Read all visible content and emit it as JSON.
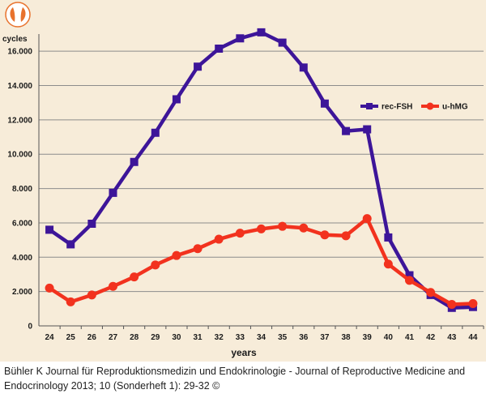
{
  "chart_data": {
    "type": "line",
    "title": "",
    "ylabel": "cycles",
    "xlabel": "years",
    "categories": [
      "24",
      "25",
      "26",
      "27",
      "28",
      "29",
      "30",
      "31",
      "32",
      "33",
      "34",
      "35",
      "36",
      "37",
      "38",
      "39",
      "40",
      "41",
      "42",
      "43",
      "44"
    ],
    "series": [
      {
        "name": "rec-FSH",
        "color": "#3d1599",
        "values": [
          5600,
          4750,
          5950,
          7750,
          9550,
          11250,
          13200,
          15100,
          16150,
          16750,
          17100,
          16500,
          15050,
          12950,
          11350,
          11450,
          5150,
          2950,
          1800,
          1050,
          1100
        ]
      },
      {
        "name": "u-hMG",
        "color": "#f2321e",
        "values": [
          2200,
          1400,
          1800,
          2300,
          2850,
          3550,
          4100,
          4500,
          5050,
          5400,
          5650,
          5800,
          5700,
          5300,
          5250,
          6250,
          3600,
          2650,
          1950,
          1250,
          1300
        ]
      }
    ],
    "ylim": [
      0,
      17000
    ],
    "yticks": [
      0,
      2000,
      4000,
      6000,
      8000,
      10000,
      12000,
      14000,
      16000
    ],
    "ytick_labels": [
      "0",
      "2.000",
      "4.000",
      "6.000",
      "8.000",
      "10.000",
      "12.000",
      "14.000",
      "16.000"
    ],
    "grid": true,
    "legend_position": "top-right"
  },
  "logo": {
    "name": "journal-logo"
  },
  "caption": {
    "line1": "Bühler K Journal für Reproduktionsmedizin und Endokrinologie - Journal of Reproductive Medicine and",
    "line2": "Endocrinology 2013; 10 (Sonderheft 1): 29-32 ©"
  }
}
